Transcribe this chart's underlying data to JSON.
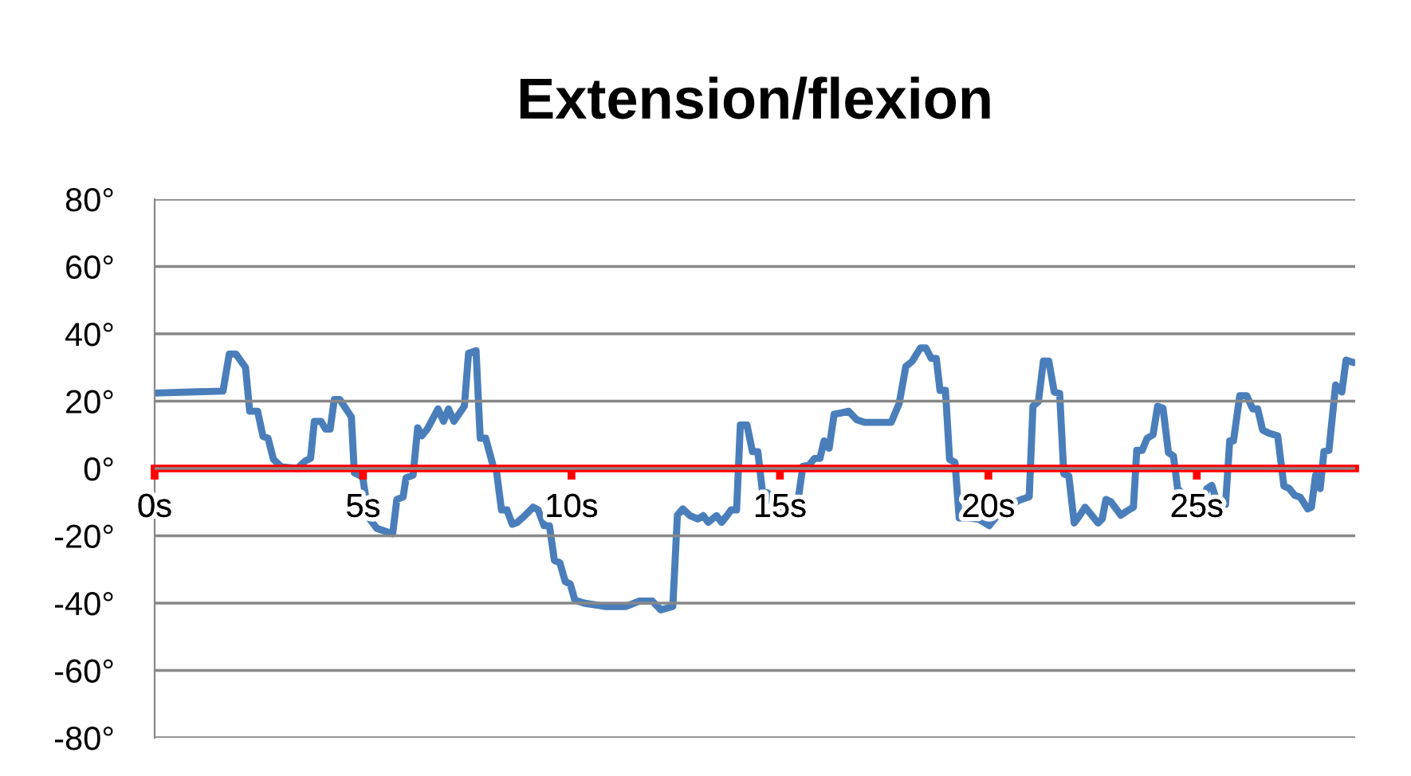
{
  "chart_data": {
    "type": "line",
    "title": "Extension/flexion",
    "series": [
      {
        "color": "#4a7ebb",
        "x": [
          0,
          1.64,
          1.79,
          1.95,
          2.18,
          2.28,
          2.47,
          2.6,
          2.72,
          2.85,
          3.04,
          3.42,
          3.61,
          3.74,
          3.83,
          3.99,
          4.1,
          4.21,
          4.31,
          4.44,
          4.72,
          4.79,
          4.99,
          5.14,
          5.33,
          5.71,
          5.81,
          5.96,
          6.03,
          6.2,
          6.31,
          6.41,
          6.54,
          6.8,
          6.93,
          7.05,
          7.18,
          7.43,
          7.53,
          7.71,
          7.81,
          7.94,
          8.13,
          8.2,
          8.32,
          8.45,
          8.58,
          8.7,
          8.89,
          9.08,
          9.2,
          9.34,
          9.47,
          9.59,
          9.72,
          9.85,
          9.97,
          10.08,
          10.3,
          10.8,
          11.31,
          11.63,
          11.94,
          12.14,
          12.43,
          12.54,
          12.67,
          12.84,
          13.03,
          13.16,
          13.28,
          13.48,
          13.6,
          13.73,
          13.83,
          13.96,
          14.05,
          14.21,
          14.34,
          14.47,
          14.58,
          14.71,
          14.87,
          15.3,
          15.42,
          15.55,
          15.7,
          15.83,
          15.96,
          16.06,
          16.18,
          16.3,
          16.46,
          16.65,
          16.84,
          17.03,
          17.67,
          17.86,
          18.02,
          18.17,
          18.37,
          18.5,
          18.63,
          18.75,
          18.84,
          18.97,
          19.07,
          19.2,
          19.3,
          19.52,
          19.77,
          20.02,
          20.22,
          20.47,
          20.73,
          20.98,
          21.07,
          21.2,
          21.32,
          21.45,
          21.58,
          21.71,
          21.81,
          21.93,
          22.06,
          22.19,
          22.32,
          22.48,
          22.63,
          22.73,
          22.82,
          22.94,
          23.18,
          23.33,
          23.48,
          23.56,
          23.69,
          23.81,
          23.95,
          24.06,
          24.19,
          24.32,
          24.44,
          24.54,
          24.73,
          24.92,
          25.11,
          25.24,
          25.36,
          25.5,
          25.69,
          25.79,
          25.88,
          26.03,
          26.2,
          26.34,
          26.46,
          26.58,
          26.73,
          26.94,
          27.09,
          27.22,
          27.35,
          27.48,
          27.66,
          27.75,
          27.85,
          27.96,
          28.05,
          28.17,
          28.33,
          28.48,
          28.58,
          28.73
        ],
        "values": [
          22.4,
          23,
          34,
          34,
          30,
          17,
          17,
          9.5,
          9,
          2.7,
          0.5,
          0,
          2.2,
          3,
          14,
          14,
          11.7,
          11.7,
          20.5,
          20.5,
          15.3,
          -1.3,
          -2.5,
          -14.7,
          -17.8,
          -19.4,
          -9.2,
          -8.5,
          -2.8,
          -2,
          12.1,
          9.7,
          11.7,
          17.7,
          14,
          17.7,
          14,
          18.5,
          34.2,
          35,
          9,
          9,
          0.3,
          -0.8,
          -12.3,
          -12.3,
          -16.6,
          -16,
          -13.9,
          -11.5,
          -12.3,
          -17,
          -17,
          -27.3,
          -28,
          -33.6,
          -34.3,
          -39.1,
          -40,
          -41,
          -41,
          -39.4,
          -39.4,
          -42,
          -41,
          -13.9,
          -12,
          -14,
          -15,
          -14,
          -16,
          -14,
          -16,
          -14,
          -12.3,
          -12.3,
          12.9,
          12.9,
          5,
          5,
          -6.8,
          -7.3,
          -11.5,
          -11.5,
          -10.6,
          0.6,
          1,
          3,
          3,
          8.2,
          6,
          16.1,
          16.5,
          17,
          14.5,
          13.7,
          13.7,
          19.3,
          30.3,
          31.8,
          35.8,
          35.8,
          32.7,
          32.7,
          23.2,
          23.2,
          2.7,
          1.8,
          -14.7,
          -14.7,
          -15.1,
          -17,
          -13.9,
          -11.5,
          -9.5,
          -8.4,
          18.5,
          19.9,
          31.9,
          31.9,
          22.7,
          22.3,
          -1.6,
          -2.2,
          -16.2,
          -14,
          -11.5,
          -13.9,
          -16.2,
          -15,
          -9.2,
          -9.9,
          -13.9,
          -12.6,
          -11.5,
          5.4,
          5.4,
          9,
          10,
          18.5,
          17.9,
          4.7,
          3.7,
          -6,
          -8.4,
          -9.9,
          -12,
          -6,
          -5,
          -10.7,
          -10.7,
          8.2,
          8.2,
          21.6,
          21.6,
          17.7,
          17.7,
          11.4,
          10.5,
          9.7,
          -5.2,
          -6,
          -8,
          -8.5,
          -12,
          -11.5,
          -2,
          -6,
          5,
          5.4,
          24.8,
          22.7,
          32.2,
          31.6
        ]
      }
    ],
    "xlim": [
      0,
      28.8
    ],
    "xticks": [
      {
        "value": 0,
        "label": "0s"
      },
      {
        "value": 5,
        "label": "5s"
      },
      {
        "value": 10,
        "label": "10s"
      },
      {
        "value": 15,
        "label": "15s"
      },
      {
        "value": 20,
        "label": "20s"
      },
      {
        "value": 25,
        "label": "25s"
      }
    ],
    "ylim": [
      -80,
      80
    ],
    "yticks": [
      {
        "value": 80,
        "label": "80°"
      },
      {
        "value": 60,
        "label": "60°"
      },
      {
        "value": 40,
        "label": "40°"
      },
      {
        "value": 20,
        "label": "20°"
      },
      {
        "value": 0,
        "label": "0°"
      },
      {
        "value": -20,
        "label": "-20°"
      },
      {
        "value": -40,
        "label": "-40°"
      },
      {
        "value": -60,
        "label": "-60°"
      },
      {
        "value": -80,
        "label": "-80°"
      }
    ],
    "grid": "y",
    "legend": false,
    "marker": "none",
    "line_style": "solid"
  }
}
